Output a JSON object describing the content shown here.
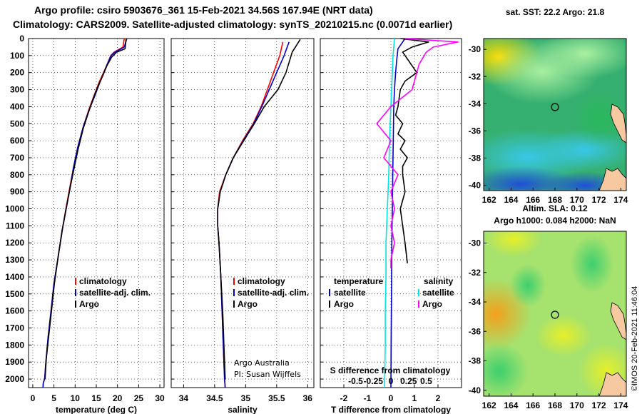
{
  "header": {
    "line1": "Argo profile: csiro 5903676_361 15-Feb-2021 34.56S 167.94E (NRT data)",
    "line2": "Climatology: CARS2009. Satellite-adjusted climatology: synTS_20210215.nc (0.0071d earlier)"
  },
  "colors": {
    "climatology": "#ff0000",
    "satellite": "#0000cc",
    "argo": "#000000",
    "satellite_salinity": "#00e5e5",
    "argo_salinity_diff": "#ff00ff"
  },
  "depth_axis": {
    "ticks": [
      "0",
      "100",
      "200",
      "300",
      "400",
      "500",
      "600",
      "700",
      "800",
      "900",
      "1000",
      "1100",
      "1200",
      "1300",
      "1400",
      "1500",
      "1600",
      "1700",
      "1800",
      "1900",
      "2000"
    ],
    "range": [
      0,
      2050
    ],
    "inverted": true
  },
  "chart_data": [
    {
      "type": "line",
      "panel": "temperature",
      "xlabel": "temperature (deg C)",
      "ylabel": "",
      "xlim": [
        -1,
        31
      ],
      "ylim": [
        2050,
        0
      ],
      "xticks": [
        "0",
        "5",
        "10",
        "15",
        "20",
        "25",
        "30"
      ],
      "grid": true,
      "legend": {
        "position": "bottom-right",
        "entries": [
          "climatology",
          "satellite-adj. clim.",
          "Argo"
        ]
      },
      "series": [
        {
          "name": "climatology",
          "color": "#ff0000",
          "x": [
            21.6,
            21.3,
            19.2,
            18.4,
            17.6,
            16.7,
            15.6,
            14.4,
            13.2,
            11.9,
            10.6,
            9.6,
            8.7,
            7.8,
            7.0,
            6.0,
            5.0,
            4.3,
            3.6,
            3.1,
            2.8,
            2.5,
            2.4
          ],
          "y": [
            0,
            50,
            80,
            100,
            150,
            200,
            260,
            340,
            420,
            520,
            640,
            760,
            880,
            1000,
            1120,
            1280,
            1440,
            1600,
            1760,
            1900,
            2000,
            2020,
            2050
          ]
        },
        {
          "name": "satellite-adj. clim.",
          "color": "#0000cc",
          "x": [
            22.2,
            21.6,
            19.4,
            18.5,
            17.6,
            16.8,
            15.8,
            14.6,
            13.3,
            11.9,
            10.6,
            9.6,
            8.8,
            7.9,
            7.0,
            6.0,
            5.0,
            4.3,
            3.6,
            3.1,
            2.8,
            2.5,
            2.4
          ],
          "y": [
            0,
            50,
            80,
            100,
            150,
            200,
            260,
            340,
            420,
            520,
            640,
            760,
            880,
            1000,
            1120,
            1280,
            1440,
            1600,
            1760,
            1900,
            2000,
            2020,
            2050
          ]
        },
        {
          "name": "Argo",
          "color": "#000000",
          "x": [
            22.0,
            21.8,
            19.8,
            18.6,
            17.5,
            16.5,
            15.4,
            14.3,
            13.2,
            11.9,
            10.7,
            9.7,
            8.7,
            7.8,
            6.9,
            6.0,
            5.1,
            4.5,
            3.8,
            3.2,
            2.9
          ],
          "y": [
            5,
            60,
            80,
            110,
            160,
            220,
            280,
            350,
            430,
            530,
            650,
            770,
            890,
            1010,
            1130,
            1280,
            1440,
            1580,
            1740,
            1880,
            2000
          ]
        }
      ]
    },
    {
      "type": "line",
      "panel": "salinity",
      "xlabel": "salinity",
      "ylabel": "",
      "xlim": [
        33.8,
        36.1
      ],
      "ylim": [
        2050,
        0
      ],
      "xticks": [
        "34",
        "34.5",
        "35",
        "35.5",
        "36"
      ],
      "grid": true,
      "legend": {
        "position": "bottom-right",
        "entries": [
          "climatology",
          "satellite-adj. clim.",
          "Argo"
        ]
      },
      "annotation": [
        "Argo Australia",
        "PI: Susan Wijffels"
      ],
      "series": [
        {
          "name": "climatology",
          "color": "#ff0000",
          "x": [
            35.6,
            35.55,
            35.45,
            35.35,
            35.25,
            35.12,
            34.95,
            34.8,
            34.68,
            34.58,
            34.55,
            34.55,
            34.57,
            34.6,
            34.62,
            34.64,
            34.66,
            34.67
          ],
          "y": [
            20,
            100,
            200,
            300,
            400,
            500,
            600,
            700,
            800,
            900,
            1000,
            1100,
            1200,
            1400,
            1600,
            1800,
            2000,
            2050
          ]
        },
        {
          "name": "satellite-adj. clim.",
          "color": "#0000cc",
          "x": [
            35.7,
            35.62,
            35.5,
            35.38,
            35.26,
            35.13,
            34.96,
            34.8,
            34.68,
            34.59,
            34.55,
            34.55,
            34.57,
            34.6,
            34.62,
            34.64,
            34.66,
            34.67
          ],
          "y": [
            20,
            100,
            200,
            300,
            400,
            500,
            600,
            700,
            800,
            900,
            1000,
            1100,
            1200,
            1400,
            1600,
            1800,
            2000,
            2050
          ]
        },
        {
          "name": "Argo",
          "color": "#000000",
          "x": [
            35.88,
            35.75,
            35.65,
            35.52,
            35.3,
            35.14,
            34.97,
            34.8,
            34.68,
            34.59,
            34.55,
            34.55,
            34.57,
            34.6,
            34.63,
            34.65,
            34.67
          ],
          "y": [
            5,
            80,
            200,
            300,
            400,
            500,
            600,
            700,
            800,
            900,
            1000,
            1100,
            1200,
            1400,
            1600,
            1800,
            2000
          ]
        }
      ]
    },
    {
      "type": "line",
      "panel": "difference",
      "xlabel": "T difference from climatology",
      "title_in_plot": "S difference from climatology",
      "xlim": [
        -3,
        3
      ],
      "ylim": [
        2050,
        0
      ],
      "xticks": [
        "-2",
        "-1",
        "0",
        "1",
        "2"
      ],
      "xticks_secondary": [
        "-0.5",
        "-0.25",
        "0",
        "0.25",
        "0.5"
      ],
      "grid": true,
      "legend": {
        "position": "bottom",
        "columns": [
          [
            "temperature",
            "satellite",
            "Argo"
          ],
          [
            "salinity",
            "satellite",
            "Argo"
          ]
        ]
      },
      "series": [
        {
          "name": "temperature satellite",
          "color": "#0000cc",
          "x": [
            0.6,
            0.3,
            0.25,
            0.2,
            0.15,
            0.12,
            0.1,
            0.08,
            0.06,
            0.04,
            0.03,
            0.02,
            0.01,
            0.0
          ],
          "y": [
            0,
            60,
            120,
            200,
            300,
            400,
            600,
            800,
            1000,
            1200,
            1400,
            1600,
            1800,
            2050
          ]
        },
        {
          "name": "temperature Argo",
          "color": "#000000",
          "x": [
            0.4,
            1.6,
            0.9,
            0.5,
            0.7,
            1.1,
            0.6,
            0.4,
            0.3,
            0.2,
            0.5,
            0.3,
            0.6,
            0.4,
            0.7,
            0.5,
            0.5,
            0.6,
            0.4,
            0.5,
            0.6,
            0.7
          ],
          "y": [
            0,
            20,
            50,
            80,
            120,
            200,
            250,
            300,
            400,
            450,
            500,
            560,
            600,
            650,
            700,
            750,
            800,
            900,
            1000,
            1100,
            1200,
            1320
          ]
        },
        {
          "name": "salinity satellite",
          "color": "#00e5e5",
          "x": [
            0.05,
            0.03,
            0.02,
            0.0,
            -0.02,
            -0.03,
            -0.05,
            -0.07,
            -0.07,
            -0.08,
            -0.08,
            -0.09
          ],
          "y": [
            0,
            100,
            200,
            400,
            600,
            800,
            1000,
            1200,
            1400,
            1600,
            1800,
            2050
          ]
        },
        {
          "name": "salinity Argo",
          "color": "#ff00ff",
          "x": [
            0.2,
            0.95,
            0.6,
            0.5,
            0.4,
            0.3,
            0.0,
            -0.1,
            -0.2,
            0.0,
            -0.1,
            0.1,
            0.0,
            0.05,
            0.0,
            0.05,
            0.0,
            0.0
          ],
          "y": [
            0,
            20,
            50,
            80,
            150,
            300,
            400,
            450,
            500,
            600,
            700,
            800,
            900,
            1000,
            1100,
            1200,
            1300,
            1350
          ]
        }
      ]
    },
    {
      "type": "heatmap",
      "panel": "map_sst",
      "title": "sat. SST: 22.2 Argo: 21.8",
      "xlim": [
        161.5,
        174.5
      ],
      "ylim": [
        -40.4,
        -29.2
      ],
      "xticks": [
        "162",
        "164",
        "166",
        "168",
        "170",
        "172",
        "174"
      ],
      "yticks": [
        "-30",
        "-32",
        "-34",
        "-36",
        "-38",
        "-40"
      ],
      "marker": {
        "lon": 167.94,
        "lat": -34.56
      }
    },
    {
      "type": "heatmap",
      "panel": "map_sla",
      "title": "Altim. SLA: 0.12",
      "subtitle": "Argo h1000: 0.084 h2000: NaN",
      "xlim": [
        161.5,
        174.5
      ],
      "ylim": [
        -40.4,
        -29.2
      ],
      "xticks": [
        "162",
        "164",
        "166",
        "168",
        "170",
        "172",
        "174"
      ],
      "yticks": [
        "-30",
        "-32",
        "-34",
        "-36",
        "-38",
        "-40"
      ],
      "marker": {
        "lon": 167.94,
        "lat": -34.56
      }
    }
  ],
  "footer": {
    "stamp": "©IMOS 20-Feb-2021 11:46:04"
  }
}
